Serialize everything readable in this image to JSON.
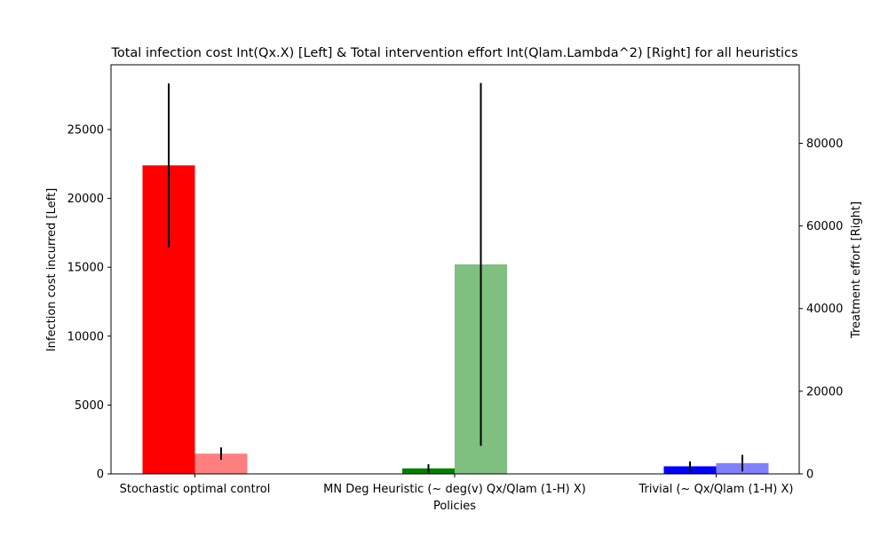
{
  "chart_data": {
    "type": "bar",
    "title": "Total infection cost Int(Qx.X) [Left] & Total intervention effort Int(Qlam.Lambda^2) [Right] for all heuristics",
    "xlabel": "Policies",
    "ylabel_left": "Infection cost incurred [Left]",
    "ylabel_right": "Treatment effort [Right]",
    "categories": [
      "Stochastic optimal control",
      "MN Deg Heuristic (~ deg(v) Qx/Qlam (1-H) X)",
      "Trivial (~ Qx/Qlam (1-H) X)"
    ],
    "ylim_left": [
      0,
      29700
    ],
    "ylim_right": [
      0,
      99000
    ],
    "yticks_left": [
      0,
      5000,
      10000,
      15000,
      20000,
      25000
    ],
    "yticks_right": [
      0,
      20000,
      40000,
      60000,
      80000
    ],
    "grid": false,
    "series": [
      {
        "axis": "left",
        "values": [
          22400,
          400,
          550
        ],
        "errors": [
          5950,
          300,
          350
        ],
        "colors": [
          "#ff0000",
          "#008000",
          "#0000ff"
        ],
        "opacity": 1.0
      },
      {
        "axis": "right",
        "values": [
          4900,
          50700,
          2600
        ],
        "errors": [
          1500,
          43900,
          2000
        ],
        "colors": [
          "#ff0000",
          "#008000",
          "#0000ff"
        ],
        "opacity": 0.5
      }
    ]
  }
}
